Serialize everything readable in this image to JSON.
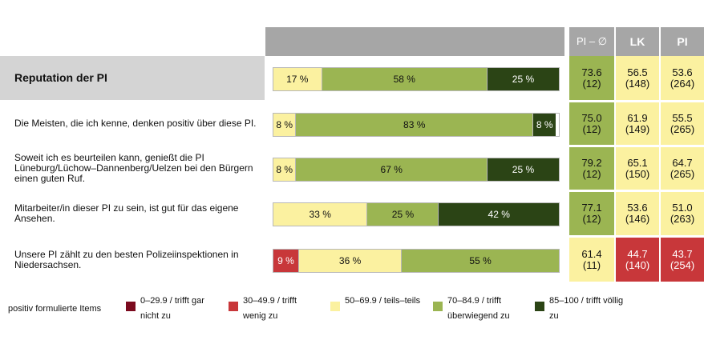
{
  "header": {
    "pi_avg": "PI – ∅",
    "lk": "LK",
    "pi": "PI"
  },
  "colors": {
    "very_low": "#7b0a1e",
    "low": "#c8373a",
    "mid": "#fbf1a0",
    "high": "#9bb552",
    "very_high": "#2b4415",
    "grey": "#a6a6a6"
  },
  "chart_data": {
    "type": "bar",
    "stacked": true,
    "orientation": "horizontal",
    "categories": [
      "Reputation der PI",
      "Die Meisten, die ich kenne, denken positiv über diese PI.",
      "Soweit ich es beurteilen kann, genießt die PI Lüneburg/Lüchow–Dannenberg/Uelzen bei den Bürgern einen guten Ruf.",
      "Mitarbeiter/in dieser PI zu sein, ist gut für das eigene Ansehen.",
      "Unsere PI zählt zu den besten Polizeiinspektionen in Niedersachsen."
    ],
    "series": [
      {
        "name": "30–49.9 / trifft wenig zu",
        "values": [
          0,
          0,
          0,
          0,
          9
        ]
      },
      {
        "name": "50–69.9 / teils–teils",
        "values": [
          17,
          8,
          8,
          33,
          36
        ]
      },
      {
        "name": "70–84.9 / trifft überwiegend zu",
        "values": [
          58,
          83,
          67,
          25,
          55
        ]
      },
      {
        "name": "85–100 / trifft völlig zu",
        "values": [
          25,
          8,
          25,
          42,
          0
        ]
      }
    ]
  },
  "rows": [
    {
      "label": "Reputation der PI",
      "segments": [
        {
          "pct": 17,
          "label": "17 %",
          "cls": "mid"
        },
        {
          "pct": 58,
          "label": "58 %",
          "cls": "high"
        },
        {
          "pct": 25,
          "label": "25 %",
          "cls": "very_high"
        }
      ],
      "avg": {
        "val": "73.6",
        "n": "(12)",
        "cls": "high"
      },
      "lk": {
        "val": "56.5",
        "n": "(148)",
        "cls": "mid"
      },
      "pi": {
        "val": "53.6",
        "n": "(264)",
        "cls": "mid"
      }
    },
    {
      "label": "Die Meisten, die ich kenne, denken positiv über diese PI.",
      "segments": [
        {
          "pct": 8,
          "label": "8 %",
          "cls": "mid"
        },
        {
          "pct": 83,
          "label": "83 %",
          "cls": "high"
        },
        {
          "pct": 8,
          "label": "8 %",
          "cls": "very_high"
        }
      ],
      "avg": {
        "val": "75.0",
        "n": "(12)",
        "cls": "high"
      },
      "lk": {
        "val": "61.9",
        "n": "(149)",
        "cls": "mid"
      },
      "pi": {
        "val": "55.5",
        "n": "(265)",
        "cls": "mid"
      }
    },
    {
      "label": "Soweit ich es beurteilen kann, genießt die PI Lüneburg/Lüchow–Dannenberg/Uelzen bei den Bürgern einen guten Ruf.",
      "segments": [
        {
          "pct": 8,
          "label": "8 %",
          "cls": "mid"
        },
        {
          "pct": 67,
          "label": "67 %",
          "cls": "high"
        },
        {
          "pct": 25,
          "label": "25 %",
          "cls": "very_high"
        }
      ],
      "avg": {
        "val": "79.2",
        "n": "(12)",
        "cls": "high"
      },
      "lk": {
        "val": "65.1",
        "n": "(150)",
        "cls": "mid"
      },
      "pi": {
        "val": "64.7",
        "n": "(265)",
        "cls": "mid"
      }
    },
    {
      "label": "Mitarbeiter/in dieser PI zu sein, ist gut für das eigene Ansehen.",
      "segments": [
        {
          "pct": 33,
          "label": "33 %",
          "cls": "mid"
        },
        {
          "pct": 25,
          "label": "25 %",
          "cls": "high"
        },
        {
          "pct": 42,
          "label": "42 %",
          "cls": "very_high"
        }
      ],
      "avg": {
        "val": "77.1",
        "n": "(12)",
        "cls": "high"
      },
      "lk": {
        "val": "53.6",
        "n": "(146)",
        "cls": "mid"
      },
      "pi": {
        "val": "51.0",
        "n": "(263)",
        "cls": "mid"
      }
    },
    {
      "label": "Unsere PI zählt zu den besten Polizeiinspektionen in Niedersachsen.",
      "segments": [
        {
          "pct": 9,
          "label": "9 %",
          "cls": "low"
        },
        {
          "pct": 36,
          "label": "36 %",
          "cls": "mid"
        },
        {
          "pct": 55,
          "label": "55 %",
          "cls": "high"
        }
      ],
      "avg": {
        "val": "61.4",
        "n": "(11)",
        "cls": "mid"
      },
      "lk": {
        "val": "44.7",
        "n": "(140)",
        "cls": "low"
      },
      "pi": {
        "val": "43.7",
        "n": "(254)",
        "cls": "low"
      }
    }
  ],
  "legend": {
    "intro": "positiv formulierte Items",
    "items": [
      {
        "line1": "0–29.9 / trifft gar",
        "line2": "nicht zu",
        "cls": "very_low"
      },
      {
        "line1": "30–49.9 / trifft",
        "line2": "wenig zu",
        "cls": "low"
      },
      {
        "line1": "50–69.9 / teils–teils",
        "line2": "",
        "cls": "mid"
      },
      {
        "line1": "70–84.9 / trifft",
        "line2": "überwiegend zu",
        "cls": "high"
      },
      {
        "line1": "85–100 / trifft völlig",
        "line2": "zu",
        "cls": "very_high"
      }
    ]
  }
}
